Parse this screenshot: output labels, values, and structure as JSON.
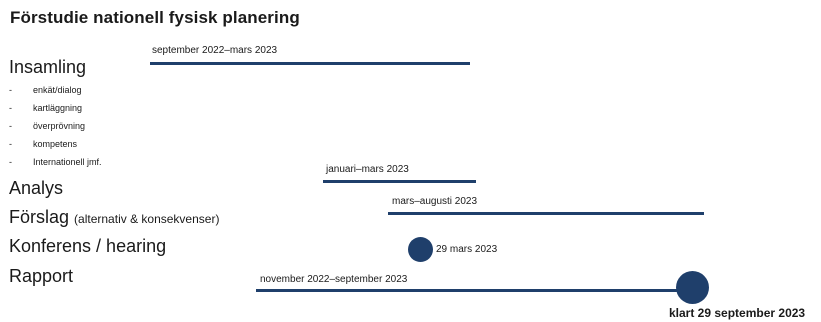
{
  "title": "Förstudie nationell fysisk planering",
  "colors": {
    "bar": "#1f3f6b",
    "text": "#1a1a1a"
  },
  "phases": {
    "insamling": {
      "label": "Insamling",
      "period": "september 2022–mars 2023",
      "subitems": [
        "enkät/dialog",
        "kartläggning",
        "överprövning",
        "kompetens",
        "Internationell jmf."
      ]
    },
    "analys": {
      "label": "Analys",
      "period": "januari–mars 2023"
    },
    "forslag": {
      "label": "Förslag",
      "note": "(alternativ & konsekvenser)",
      "period": "mars–augusti 2023"
    },
    "konferens": {
      "label": "Konferens / hearing",
      "milestone": "29 mars 2023"
    },
    "rapport": {
      "label": "Rapport",
      "period": "november 2022–september 2023",
      "milestone": "klart 29 september 2023"
    }
  },
  "sub_bullet": "-"
}
